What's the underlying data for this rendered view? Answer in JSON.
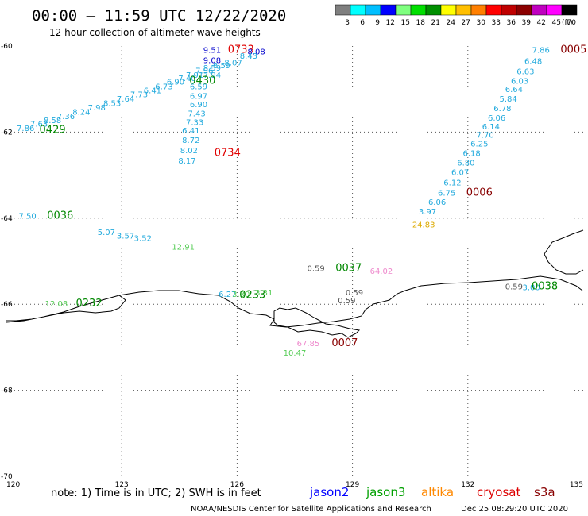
{
  "header": {
    "title": "00:00 — 11:59 UTC 12/22/2020",
    "subtitle": "12 hour collection of altimeter wave heights"
  },
  "colorbar": {
    "colors": [
      "#7f7f7f",
      "#00ffff",
      "#00bfff",
      "#0000ff",
      "#7fff7f",
      "#00df00",
      "#008f00",
      "#ffff00",
      "#ffbf00",
      "#ff7f00",
      "#ff0000",
      "#bf0000",
      "#8b0000",
      "#bf00bf",
      "#ff00ff",
      "#000000"
    ],
    "ticks": [
      "3",
      "6",
      "9",
      "12",
      "15",
      "18",
      "21",
      "24",
      "27",
      "30",
      "33",
      "36",
      "39",
      "42",
      "45",
      "70"
    ],
    "unit": "(ft)"
  },
  "map": {
    "lon_range": [
      120,
      135
    ],
    "lat_range": [
      -70,
      -60
    ],
    "lon_ticks": [
      "120",
      "123",
      "126",
      "129",
      "132",
      "135"
    ],
    "lat_ticks": [
      "-60",
      "-62",
      "-64",
      "-66",
      "-68",
      "-70"
    ]
  },
  "labels": [
    {
      "lon": 125.35,
      "lat": -60.08,
      "text": "9.51",
      "sat": "jason2",
      "c": "#0000cc"
    },
    {
      "lon": 126.1,
      "lat": -60.08,
      "text": "0733",
      "sat": "cryosat",
      "c": "#e00000",
      "big": true
    },
    {
      "lon": 126.5,
      "lat": -60.12,
      "text": "8.08",
      "sat": "jason2",
      "c": "#0000cc"
    },
    {
      "lon": 125.35,
      "lat": -60.32,
      "text": "9.08",
      "sat": "jason2",
      "c": "#0000cc"
    },
    {
      "lon": 126.3,
      "lat": -60.22,
      "text": "8.43",
      "sat": "jason2",
      "c": "#22aadd"
    },
    {
      "lon": 125.9,
      "lat": -60.38,
      "text": "8.07",
      "sat": "jason2",
      "c": "#22aadd"
    },
    {
      "lon": 125.6,
      "lat": -60.44,
      "text": "8.59",
      "sat": "jason2",
      "c": "#22aadd"
    },
    {
      "lon": 125.35,
      "lat": -60.5,
      "text": "8.59",
      "sat": "jason2",
      "c": "#22aadd"
    },
    {
      "lon": 125.15,
      "lat": -60.56,
      "text": "7.96",
      "sat": "jason2",
      "c": "#22aadd"
    },
    {
      "lon": 124.9,
      "lat": -60.66,
      "text": "7.91",
      "sat": "jason2",
      "c": "#22aadd"
    },
    {
      "lon": 125.35,
      "lat": -60.66,
      "text": "7.94",
      "sat": "jason2",
      "c": "#22aadd"
    },
    {
      "lon": 124.7,
      "lat": -60.74,
      "text": "7.40",
      "sat": "jason2",
      "c": "#22aadd"
    },
    {
      "lon": 125.1,
      "lat": -60.8,
      "text": "0430",
      "sat": "jason3",
      "c": "#008800",
      "big": true
    },
    {
      "lon": 124.4,
      "lat": -60.82,
      "text": "6.90",
      "sat": "jason2",
      "c": "#22aadd"
    },
    {
      "lon": 124.1,
      "lat": -60.93,
      "text": "6.73",
      "sat": "jason2",
      "c": "#22aadd"
    },
    {
      "lon": 125.0,
      "lat": -60.93,
      "text": "6.59",
      "sat": "jason2",
      "c": "#22aadd"
    },
    {
      "lon": 123.8,
      "lat": -61.02,
      "text": "6.41",
      "sat": "jason2",
      "c": "#22aadd"
    },
    {
      "lon": 123.45,
      "lat": -61.12,
      "text": "7.73",
      "sat": "jason2",
      "c": "#22aadd"
    },
    {
      "lon": 125.0,
      "lat": -61.15,
      "text": "6.97",
      "sat": "jason2",
      "c": "#22aadd"
    },
    {
      "lon": 123.1,
      "lat": -61.22,
      "text": "7.64",
      "sat": "jason2",
      "c": "#22aadd"
    },
    {
      "lon": 122.75,
      "lat": -61.32,
      "text": "8.53",
      "sat": "jason2",
      "c": "#22aadd"
    },
    {
      "lon": 125.0,
      "lat": -61.35,
      "text": "6.90",
      "sat": "jason2",
      "c": "#22aadd"
    },
    {
      "lon": 122.35,
      "lat": -61.42,
      "text": "7.98",
      "sat": "jason2",
      "c": "#22aadd"
    },
    {
      "lon": 121.95,
      "lat": -61.52,
      "text": "8.24",
      "sat": "jason2",
      "c": "#22aadd"
    },
    {
      "lon": 124.95,
      "lat": -61.56,
      "text": "7.43",
      "sat": "jason2",
      "c": "#22aadd"
    },
    {
      "lon": 121.55,
      "lat": -61.62,
      "text": "7.36",
      "sat": "jason2",
      "c": "#22aadd"
    },
    {
      "lon": 121.2,
      "lat": -61.72,
      "text": "8.58",
      "sat": "jason2",
      "c": "#22aadd"
    },
    {
      "lon": 124.9,
      "lat": -61.76,
      "text": "7.33",
      "sat": "jason2",
      "c": "#22aadd"
    },
    {
      "lon": 120.85,
      "lat": -61.8,
      "text": "7.63",
      "sat": "jason2",
      "c": "#22aadd"
    },
    {
      "lon": 121.2,
      "lat": -61.95,
      "text": "0429",
      "sat": "jason3",
      "c": "#008800",
      "big": true
    },
    {
      "lon": 120.5,
      "lat": -61.9,
      "text": "7.86",
      "sat": "jason2",
      "c": "#22aadd"
    },
    {
      "lon": 124.8,
      "lat": -61.96,
      "text": "6.41",
      "sat": "jason2",
      "c": "#22aadd"
    },
    {
      "lon": 124.8,
      "lat": -62.18,
      "text": "8.72",
      "sat": "jason2",
      "c": "#22aadd"
    },
    {
      "lon": 124.75,
      "lat": -62.42,
      "text": "8.02",
      "sat": "jason2",
      "c": "#22aadd"
    },
    {
      "lon": 125.75,
      "lat": -62.48,
      "text": "0734",
      "sat": "cryosat",
      "c": "#e00000",
      "big": true
    },
    {
      "lon": 124.7,
      "lat": -62.66,
      "text": "8.17",
      "sat": "jason2",
      "c": "#22aadd"
    },
    {
      "lon": 133.9,
      "lat": -60.08,
      "text": "7.86",
      "sat": "jason2",
      "c": "#22aadd"
    },
    {
      "lon": 134.75,
      "lat": -60.08,
      "text": "0005",
      "sat": "s3a",
      "c": "#880000",
      "big": true
    },
    {
      "lon": 133.7,
      "lat": -60.34,
      "text": "6.48",
      "sat": "jason2",
      "c": "#22aadd"
    },
    {
      "lon": 133.5,
      "lat": -60.58,
      "text": "6.63",
      "sat": "jason2",
      "c": "#22aadd"
    },
    {
      "lon": 133.35,
      "lat": -60.8,
      "text": "6.03",
      "sat": "jason2",
      "c": "#22aadd"
    },
    {
      "lon": 133.2,
      "lat": -61.0,
      "text": "6.64",
      "sat": "jason2",
      "c": "#22aadd"
    },
    {
      "lon": 133.05,
      "lat": -61.22,
      "text": "5.84",
      "sat": "jason2",
      "c": "#22aadd"
    },
    {
      "lon": 132.9,
      "lat": -61.44,
      "text": "6.78",
      "sat": "jason2",
      "c": "#22aadd"
    },
    {
      "lon": 132.75,
      "lat": -61.66,
      "text": "6.06",
      "sat": "jason2",
      "c": "#22aadd"
    },
    {
      "lon": 132.6,
      "lat": -61.86,
      "text": "6.14",
      "sat": "jason2",
      "c": "#22aadd"
    },
    {
      "lon": 132.45,
      "lat": -62.06,
      "text": "7.70",
      "sat": "jason2",
      "c": "#22aadd"
    },
    {
      "lon": 132.3,
      "lat": -62.26,
      "text": "6.25",
      "sat": "jason2",
      "c": "#22aadd"
    },
    {
      "lon": 132.1,
      "lat": -62.48,
      "text": "6.18",
      "sat": "jason2",
      "c": "#22aadd"
    },
    {
      "lon": 131.95,
      "lat": -62.7,
      "text": "6.80",
      "sat": "jason2",
      "c": "#22aadd"
    },
    {
      "lon": 131.8,
      "lat": -62.92,
      "text": "6.07",
      "sat": "jason2",
      "c": "#22aadd"
    },
    {
      "lon": 131.6,
      "lat": -63.16,
      "text": "6.12",
      "sat": "jason2",
      "c": "#22aadd"
    },
    {
      "lon": 131.45,
      "lat": -63.4,
      "text": "6.75",
      "sat": "jason2",
      "c": "#22aadd"
    },
    {
      "lon": 132.3,
      "lat": -63.4,
      "text": "0006",
      "sat": "s3a",
      "c": "#880000",
      "big": true
    },
    {
      "lon": 131.2,
      "lat": -63.62,
      "text": "6.06",
      "sat": "jason2",
      "c": "#22aadd"
    },
    {
      "lon": 130.95,
      "lat": -63.84,
      "text": "3.97",
      "sat": "jason2",
      "c": "#22aadd"
    },
    {
      "lon": 130.85,
      "lat": -64.14,
      "text": "24.83",
      "sat": "altika",
      "c": "#ddaa00"
    },
    {
      "lon": 120.55,
      "lat": -63.94,
      "text": "7.50",
      "sat": "jason2",
      "c": "#22aadd"
    },
    {
      "lon": 121.4,
      "lat": -63.94,
      "text": "0036",
      "sat": "jason3",
      "c": "#008800",
      "big": true
    },
    {
      "lon": 122.6,
      "lat": -64.32,
      "text": "5.07",
      "sat": "jason2",
      "c": "#22aadd"
    },
    {
      "lon": 123.1,
      "lat": -64.4,
      "text": "3.57",
      "sat": "jason2",
      "c": "#22aadd"
    },
    {
      "lon": 123.55,
      "lat": -64.46,
      "text": "3.52",
      "sat": "jason2",
      "c": "#22aadd"
    },
    {
      "lon": 124.6,
      "lat": -64.66,
      "text": "12.91",
      "sat": "jason3",
      "c": "#55cc55"
    },
    {
      "lon": 128.05,
      "lat": -65.16,
      "text": "0.59",
      "sat": "other",
      "c": "#555555"
    },
    {
      "lon": 128.9,
      "lat": -65.16,
      "text": "0037",
      "sat": "jason3",
      "c": "#008800",
      "big": true
    },
    {
      "lon": 129.75,
      "lat": -65.22,
      "text": "64.02",
      "sat": "s3a",
      "c": "#ee88cc"
    },
    {
      "lon": 129.05,
      "lat": -65.72,
      "text": "0.59",
      "sat": "other",
      "c": "#555555"
    },
    {
      "lon": 128.85,
      "lat": -65.9,
      "text": "0.59",
      "sat": "other",
      "c": "#555555"
    },
    {
      "lon": 125.75,
      "lat": -65.76,
      "text": "6.27",
      "sat": "jason2",
      "c": "#22aadd"
    },
    {
      "lon": 126.1,
      "lat": -65.76,
      "text": "3.30",
      "sat": "jason3",
      "c": "#55cc55"
    },
    {
      "lon": 126.4,
      "lat": -65.78,
      "text": "0233",
      "sat": "jason3",
      "c": "#008800",
      "big": true
    },
    {
      "lon": 126.7,
      "lat": -65.72,
      "text": "3.31",
      "sat": "jason3",
      "c": "#55cc55"
    },
    {
      "lon": 133.2,
      "lat": -65.58,
      "text": "0.59",
      "sat": "other",
      "c": "#555555"
    },
    {
      "lon": 133.65,
      "lat": -65.6,
      "text": "3.00",
      "sat": "jason2",
      "c": "#22aadd"
    },
    {
      "lon": 134.0,
      "lat": -65.58,
      "text": "0038",
      "sat": "jason3",
      "c": "#008800",
      "big": true
    },
    {
      "lon": 121.3,
      "lat": -65.98,
      "text": "12.08",
      "sat": "jason3",
      "c": "#55cc55"
    },
    {
      "lon": 122.15,
      "lat": -65.98,
      "text": "0232",
      "sat": "jason3",
      "c": "#008800",
      "big": true
    },
    {
      "lon": 127.85,
      "lat": -66.9,
      "text": "67.85",
      "sat": "s3a",
      "c": "#ee88cc"
    },
    {
      "lon": 128.8,
      "lat": -66.9,
      "text": "0007",
      "sat": "s3a",
      "c": "#880000",
      "big": true
    },
    {
      "lon": 127.5,
      "lat": -67.12,
      "text": "10.47",
      "sat": "jason3",
      "c": "#55cc55"
    }
  ],
  "footer": {
    "note": "note:  1) Time is in UTC;  2) SWH is in feet",
    "legend": [
      {
        "name": "jason2",
        "color": "#0000ff"
      },
      {
        "name": "jason3",
        "color": "#00a000"
      },
      {
        "name": "altika",
        "color": "#ff8800"
      },
      {
        "name": "cryosat",
        "color": "#dd0000"
      },
      {
        "name": "s3a",
        "color": "#880000"
      }
    ],
    "credit": "NOAA/NESDIS Center for Satellite Applications and Research",
    "timestamp": "Dec 25 08:29:20 UTC 2020"
  }
}
